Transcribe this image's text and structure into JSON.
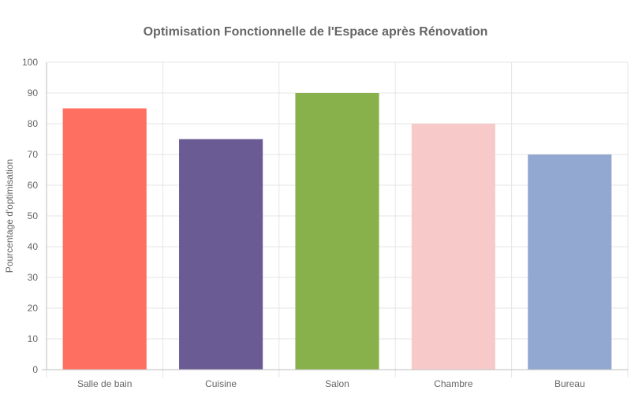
{
  "chart_data": {
    "type": "bar",
    "title": "Optimisation Fonctionnelle de l'Espace après Rénovation",
    "xlabel": "",
    "ylabel": "Pourcentage d'optimisation",
    "categories": [
      "Salle de bain",
      "Cuisine",
      "Salon",
      "Chambre",
      "Bureau"
    ],
    "values": [
      85,
      75,
      90,
      80,
      70
    ],
    "colors": [
      "#ff6f61",
      "#6b5b95",
      "#88b04b",
      "#f7cac9",
      "#92a8d1"
    ],
    "ylim": [
      0,
      100
    ],
    "yticks": [
      0,
      10,
      20,
      30,
      40,
      50,
      60,
      70,
      80,
      90,
      100
    ],
    "grid": true,
    "legend": "none"
  }
}
